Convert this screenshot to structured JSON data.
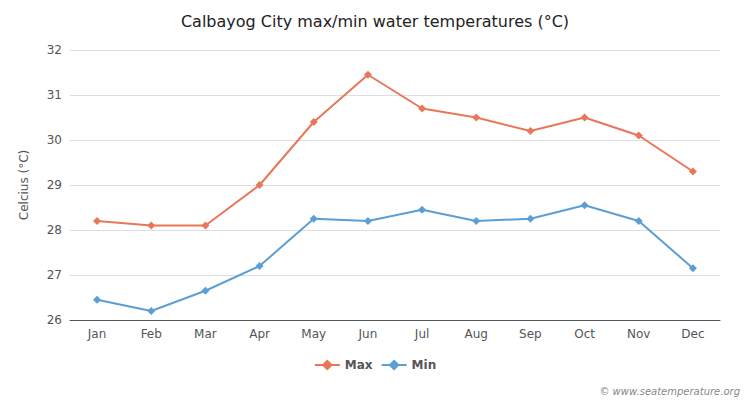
{
  "chart_data": {
    "type": "line",
    "title": "Calbayog City max/min water temperatures (°C)",
    "categories": [
      "Jan",
      "Feb",
      "Mar",
      "Apr",
      "May",
      "Jun",
      "Jul",
      "Aug",
      "Sep",
      "Oct",
      "Nov",
      "Dec"
    ],
    "series": [
      {
        "name": "Max",
        "color": "#e8775a",
        "values": [
          28.2,
          28.1,
          28.1,
          29.0,
          30.4,
          31.45,
          30.7,
          30.5,
          30.2,
          30.5,
          30.1,
          29.3
        ]
      },
      {
        "name": "Min",
        "color": "#5b9fd4",
        "values": [
          26.45,
          26.2,
          26.65,
          27.2,
          28.25,
          28.2,
          28.45,
          28.2,
          28.25,
          28.55,
          28.2,
          27.15
        ]
      }
    ],
    "ylabel": "Celcius (°C)",
    "ylim": [
      26,
      32
    ],
    "yticks": [
      26,
      27,
      28,
      29,
      30,
      31,
      32
    ],
    "grid": true,
    "legend": "bottom",
    "marker": "diamond",
    "annotations": [
      "© www.seatemperature.org"
    ]
  }
}
